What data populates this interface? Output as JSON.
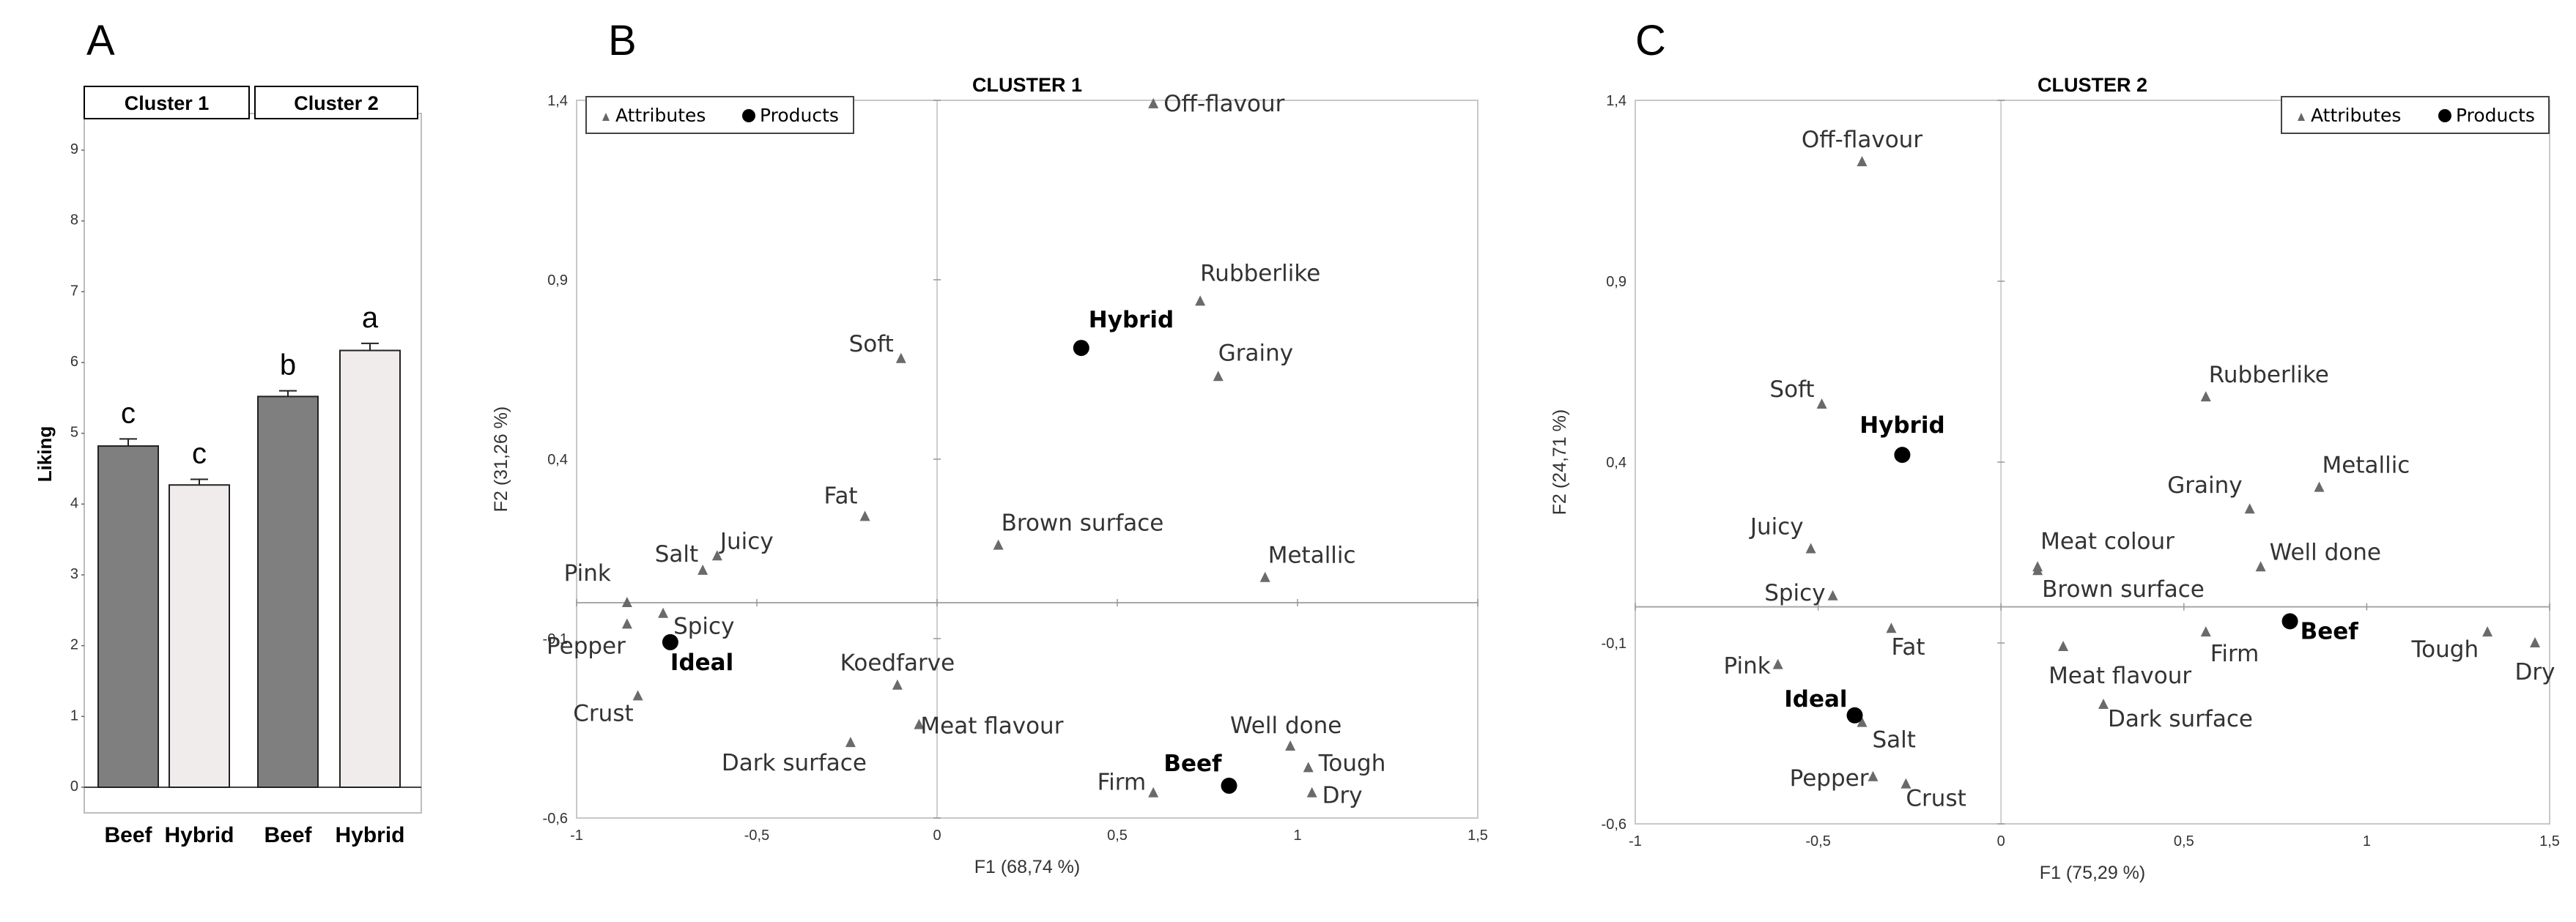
{
  "chart_data": [
    {
      "panel": "A",
      "type": "bar",
      "ylabel": "Liking",
      "ylim": [
        0,
        9
      ],
      "yticks": [
        "0",
        "1",
        "2",
        "3",
        "4",
        "5",
        "6",
        "7",
        "8",
        "9"
      ],
      "groups": [
        {
          "label": "Cluster 1",
          "bars": [
            {
              "category": "Beef",
              "value": 4.82,
              "error": 0.1,
              "letter": "c",
              "color": "#7f7f7f"
            },
            {
              "category": "Hybrid",
              "value": 4.27,
              "error": 0.08,
              "letter": "c",
              "color": "#f0ecec"
            }
          ]
        },
        {
          "label": "Cluster 2",
          "bars": [
            {
              "category": "Beef",
              "value": 5.52,
              "error": 0.08,
              "letter": "b",
              "color": "#7f7f7f"
            },
            {
              "category": "Hybrid",
              "value": 6.17,
              "error": 0.1,
              "letter": "a",
              "color": "#f0ecec"
            }
          ]
        }
      ]
    },
    {
      "panel": "B",
      "type": "scatter",
      "title": "CLUSTER 1",
      "xlabel": "F1 (68,74 %)",
      "ylabel": "F2 (31,26 %)",
      "xlim": [
        -1,
        1.5
      ],
      "ylim": [
        -0.6,
        1.4
      ],
      "xticks": [
        {
          "v": -1,
          "label": "-1"
        },
        {
          "v": -0.5,
          "label": "-0,5"
        },
        {
          "v": 0,
          "label": "0"
        },
        {
          "v": 0.5,
          "label": "0,5"
        },
        {
          "v": 1,
          "label": "1"
        },
        {
          "v": 1.5,
          "label": "1,5"
        }
      ],
      "yticks": [
        {
          "v": -0.6,
          "label": "-0,6"
        },
        {
          "v": -0.1,
          "label": "-0,1"
        },
        {
          "v": 0.4,
          "label": "0,4"
        },
        {
          "v": 0.9,
          "label": "0,9"
        },
        {
          "v": 1.4,
          "label": "1,4"
        }
      ],
      "legend": {
        "position": "top-left",
        "attributes": "Attributes",
        "products": "Products"
      },
      "attributes": [
        {
          "name": "Off-flavour",
          "x": 0.6,
          "y": 1.39
        },
        {
          "name": "Rubberlike",
          "x": 0.73,
          "y": 0.84
        },
        {
          "name": "Grainy",
          "x": 0.78,
          "y": 0.63
        },
        {
          "name": "Soft",
          "x": -0.1,
          "y": 0.68
        },
        {
          "name": "Fat",
          "x": -0.2,
          "y": 0.24
        },
        {
          "name": "Brown surface",
          "x": 0.17,
          "y": 0.16
        },
        {
          "name": "Metallic",
          "x": 0.91,
          "y": 0.07
        },
        {
          "name": "Juicy",
          "x": -0.61,
          "y": 0.13
        },
        {
          "name": "Salt",
          "x": -0.65,
          "y": 0.09
        },
        {
          "name": "Pink",
          "x": -0.86,
          "y": 0.0
        },
        {
          "name": "Spicy",
          "x": -0.76,
          "y": -0.03
        },
        {
          "name": "Pepper",
          "x": -0.86,
          "y": -0.06
        },
        {
          "name": "Crust",
          "x": -0.83,
          "y": -0.26
        },
        {
          "name": "Koedfarve",
          "x": -0.11,
          "y": -0.23
        },
        {
          "name": "Meat flavour",
          "x": -0.05,
          "y": -0.34
        },
        {
          "name": "Dark surface",
          "x": -0.24,
          "y": -0.39
        },
        {
          "name": "Well done",
          "x": 0.98,
          "y": -0.4
        },
        {
          "name": "Tough",
          "x": 1.03,
          "y": -0.46
        },
        {
          "name": "Dry",
          "x": 1.04,
          "y": -0.53
        },
        {
          "name": "Firm",
          "x": 0.6,
          "y": -0.53
        }
      ],
      "products": [
        {
          "name": "Hybrid",
          "x": 0.4,
          "y": 0.71
        },
        {
          "name": "Ideal",
          "x": -0.74,
          "y": -0.11
        },
        {
          "name": "Beef",
          "x": 0.81,
          "y": -0.51
        }
      ]
    },
    {
      "panel": "C",
      "type": "scatter",
      "title": "CLUSTER 2",
      "xlabel": "F1 (75,29 %)",
      "ylabel": "F2 (24,71 %)",
      "xlim": [
        -1,
        1.5
      ],
      "ylim": [
        -0.6,
        1.4
      ],
      "xticks": [
        {
          "v": -1,
          "label": "-1"
        },
        {
          "v": -0.5,
          "label": "-0,5"
        },
        {
          "v": 0,
          "label": "0"
        },
        {
          "v": 0.5,
          "label": "0,5"
        },
        {
          "v": 1,
          "label": "1"
        },
        {
          "v": 1.5,
          "label": "1,5"
        }
      ],
      "yticks": [
        {
          "v": -0.6,
          "label": "-0,6"
        },
        {
          "v": -0.1,
          "label": "-0,1"
        },
        {
          "v": 0.4,
          "label": "0,4"
        },
        {
          "v": 0.9,
          "label": "0,9"
        },
        {
          "v": 1.4,
          "label": "1,4"
        }
      ],
      "legend": {
        "position": "top-right",
        "attributes": "Attributes",
        "products": "Products"
      },
      "attributes": [
        {
          "name": "Off-flavour",
          "x": -0.38,
          "y": 1.23
        },
        {
          "name": "Soft",
          "x": -0.49,
          "y": 0.56
        },
        {
          "name": "Rubberlike",
          "x": 0.56,
          "y": 0.58
        },
        {
          "name": "Metallic",
          "x": 0.87,
          "y": 0.33
        },
        {
          "name": "Grainy",
          "x": 0.68,
          "y": 0.27
        },
        {
          "name": "Well done",
          "x": 0.71,
          "y": 0.11
        },
        {
          "name": "Juicy",
          "x": -0.52,
          "y": 0.16
        },
        {
          "name": "Meat colour",
          "x": 0.1,
          "y": 0.11
        },
        {
          "name": "Brown surface",
          "x": 0.1,
          "y": 0.1
        },
        {
          "name": "Spicy",
          "x": -0.46,
          "y": 0.03
        },
        {
          "name": "Fat",
          "x": -0.3,
          "y": -0.06
        },
        {
          "name": "Meat flavour",
          "x": 0.17,
          "y": -0.11
        },
        {
          "name": "Firm",
          "x": 0.56,
          "y": -0.07
        },
        {
          "name": "Pink",
          "x": -0.61,
          "y": -0.16
        },
        {
          "name": "Dark surface",
          "x": 0.28,
          "y": -0.27
        },
        {
          "name": "Salt",
          "x": -0.38,
          "y": -0.32
        },
        {
          "name": "Pepper",
          "x": -0.35,
          "y": -0.47
        },
        {
          "name": "Crust",
          "x": -0.26,
          "y": -0.49
        },
        {
          "name": "Tough",
          "x": 1.33,
          "y": -0.07
        },
        {
          "name": "Dry",
          "x": 1.46,
          "y": -0.1
        }
      ],
      "products": [
        {
          "name": "Hybrid",
          "x": -0.27,
          "y": 0.42
        },
        {
          "name": "Ideal",
          "x": -0.4,
          "y": -0.3
        },
        {
          "name": "Beef",
          "x": 0.79,
          "y": -0.04
        }
      ]
    }
  ]
}
